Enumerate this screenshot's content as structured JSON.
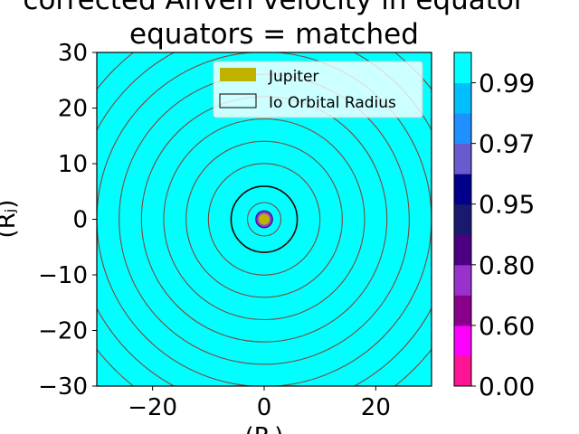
{
  "chart_data": {
    "type": "heatmap",
    "title_line1": "corrected Alfven velocity in equator",
    "title_line2": "equators = matched",
    "xlabel": "(Rⱼ)",
    "ylabel": "(Rⱼ)",
    "xlim": [
      -30,
      30
    ],
    "ylim": [
      -30,
      30
    ],
    "x_ticks": [
      -20,
      0,
      20
    ],
    "x_tick_labels": [
      "−20",
      "0",
      "20"
    ],
    "y_ticks": [
      30,
      20,
      10,
      0,
      -10,
      -20,
      -30
    ],
    "y_tick_labels": [
      "30",
      "20",
      "10",
      "0",
      "−10",
      "−20",
      "−30"
    ],
    "background_fill": "#00ffff",
    "contour_radii": [
      3,
      6,
      10,
      14,
      18,
      22,
      26,
      30,
      34,
      38
    ],
    "contour_color": "#7a4a3a",
    "io_orbit_radius": 5.9,
    "jupiter_radius": 1,
    "jupiter_color": "#bfb300",
    "inner_rings": [
      {
        "r": 1.6,
        "color": "#4b0082"
      },
      {
        "r": 1.4,
        "color": "#9932cc"
      },
      {
        "r": 1.2,
        "color": "#6a5acd"
      }
    ],
    "legend": {
      "position": "upper center",
      "entries": [
        {
          "label": "Jupiter",
          "kind": "patch",
          "color": "#bfb300"
        },
        {
          "label": "Io Orbital Radius",
          "kind": "outline",
          "color": "#000000"
        }
      ]
    },
    "colorbar": {
      "levels": [
        {
          "color": "#ff1493"
        },
        {
          "color": "#ff00ff"
        },
        {
          "color": "#8b008b"
        },
        {
          "color": "#9932cc"
        },
        {
          "color": "#4b0082"
        },
        {
          "color": "#191970"
        },
        {
          "color": "#00008b"
        },
        {
          "color": "#6a5acd"
        },
        {
          "color": "#1e90ff"
        },
        {
          "color": "#00bfff"
        },
        {
          "color": "#00ffff"
        }
      ],
      "tick_labels": [
        "0.00",
        "0.60",
        "0.80",
        "0.95",
        "0.97",
        "0.99"
      ],
      "tick_boundary_index": [
        0,
        2,
        4,
        6,
        8,
        10
      ]
    }
  }
}
